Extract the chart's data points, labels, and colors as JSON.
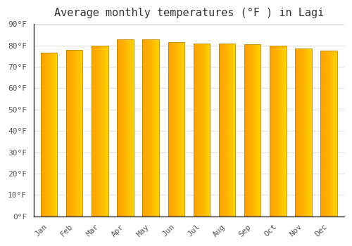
{
  "title": "Average monthly temperatures (°F ) in Lagi",
  "months": [
    "Jan",
    "Feb",
    "Mar",
    "Apr",
    "May",
    "Jun",
    "Jul",
    "Aug",
    "Sep",
    "Oct",
    "Nov",
    "Dec"
  ],
  "values": [
    76.5,
    78.0,
    80.0,
    83.0,
    83.0,
    81.5,
    81.0,
    81.0,
    80.5,
    80.0,
    78.5,
    77.5
  ],
  "bar_color_center": "#FFA500",
  "bar_color_edge": "#FFD040",
  "bar_edge_color": "#CC8800",
  "background_color": "#ffffff",
  "plot_bg_color": "#ffffff",
  "grid_color": "#e0e0e0",
  "ytick_labels": [
    "0°F",
    "10°F",
    "20°F",
    "30°F",
    "40°F",
    "50°F",
    "60°F",
    "70°F",
    "80°F",
    "90°F"
  ],
  "ytick_values": [
    0,
    10,
    20,
    30,
    40,
    50,
    60,
    70,
    80,
    90
  ],
  "ylim": [
    0,
    90
  ],
  "title_fontsize": 11,
  "tick_fontsize": 8,
  "font_family": "monospace"
}
